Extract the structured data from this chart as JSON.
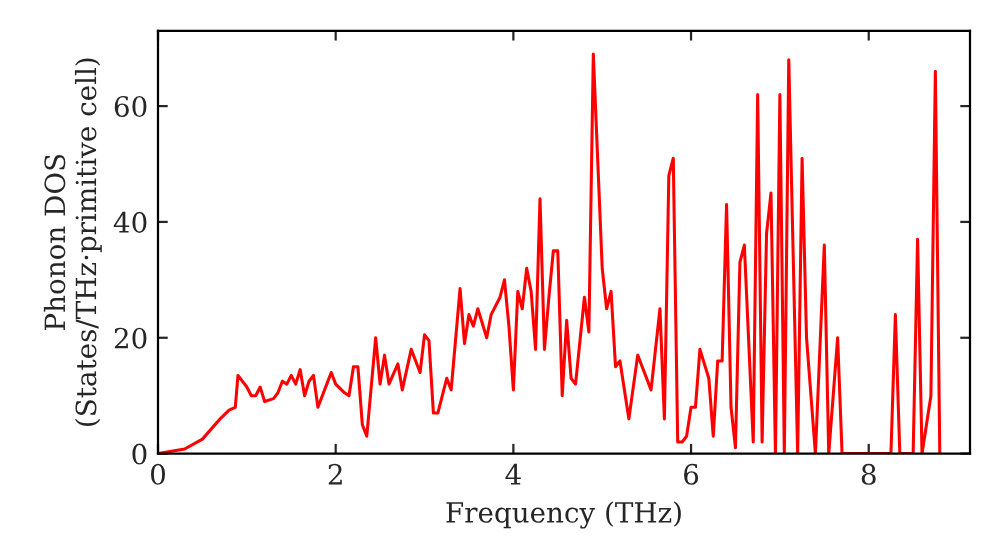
{
  "chart_data": {
    "type": "line",
    "xlabel": "Frequency (THz)",
    "ylabel": "Phonon DOS\n(States/THz·primitive cell)",
    "xlim": [
      0,
      9.14
    ],
    "ylim": [
      0,
      73
    ],
    "xticks": [
      0,
      2,
      4,
      6,
      8
    ],
    "yticks": [
      0,
      20,
      40,
      60
    ],
    "grid": false,
    "marker": "none",
    "line_style": "solid",
    "series": [
      {
        "color": "#ff0000",
        "x": [
          0,
          0.3,
          0.5,
          0.7,
          0.8,
          0.87,
          0.9,
          1.0,
          1.05,
          1.1,
          1.15,
          1.2,
          1.3,
          1.35,
          1.4,
          1.45,
          1.5,
          1.55,
          1.6,
          1.65,
          1.7,
          1.75,
          1.8,
          1.9,
          1.95,
          2.0,
          2.1,
          2.15,
          2.2,
          2.25,
          2.3,
          2.35,
          2.45,
          2.5,
          2.55,
          2.6,
          2.7,
          2.75,
          2.85,
          2.95,
          3.0,
          3.05,
          3.1,
          3.15,
          3.25,
          3.3,
          3.4,
          3.45,
          3.5,
          3.55,
          3.6,
          3.7,
          3.75,
          3.85,
          3.9,
          3.95,
          4.0,
          4.05,
          4.1,
          4.15,
          4.2,
          4.25,
          4.3,
          4.35,
          4.4,
          4.45,
          4.5,
          4.55,
          4.6,
          4.65,
          4.7,
          4.8,
          4.85,
          4.9,
          5.0,
          5.05,
          5.1,
          5.15,
          5.2,
          5.3,
          5.4,
          5.45,
          5.55,
          5.65,
          5.7,
          5.75,
          5.8,
          5.85,
          5.9,
          5.95,
          6.0,
          6.05,
          6.1,
          6.2,
          6.25,
          6.3,
          6.35,
          6.4,
          6.45,
          6.5,
          6.55,
          6.6,
          6.7,
          6.75,
          6.8,
          6.85,
          6.9,
          6.95,
          7.0,
          7.05,
          7.1,
          7.2,
          7.25,
          7.3,
          7.4,
          7.5,
          7.55,
          7.65,
          7.7,
          8.25,
          8.3,
          8.35,
          8.5,
          8.55,
          8.6,
          8.7,
          8.75,
          8.8
        ],
        "values": [
          0,
          0.8,
          2.5,
          6,
          7.5,
          8,
          13.5,
          11.5,
          10,
          10,
          11.5,
          9,
          9.5,
          10.5,
          12.5,
          12,
          13.5,
          12,
          14.5,
          10,
          12.5,
          13.5,
          8,
          12,
          14,
          12,
          10.5,
          10,
          15,
          15,
          5,
          3,
          20,
          12,
          17,
          12,
          15.5,
          11,
          18,
          14,
          20.5,
          19.5,
          7,
          7,
          13,
          11,
          28.5,
          19,
          24,
          22,
          25,
          20,
          24,
          27,
          30,
          22,
          11,
          28,
          25,
          32,
          28,
          18,
          44,
          18,
          27,
          35,
          35,
          10,
          23,
          13,
          12,
          27,
          21,
          69,
          32,
          25,
          28,
          15,
          16,
          6,
          17,
          15,
          11,
          25,
          6,
          48,
          51,
          2,
          2,
          3,
          8,
          8,
          18,
          13,
          3,
          16,
          16,
          43,
          8,
          1,
          33,
          36,
          2,
          62,
          2,
          38,
          45,
          0,
          62,
          0,
          68,
          0,
          51,
          20,
          0,
          36,
          0,
          20,
          0,
          0,
          24,
          0,
          0,
          37,
          0,
          10,
          66,
          0
        ]
      }
    ]
  }
}
